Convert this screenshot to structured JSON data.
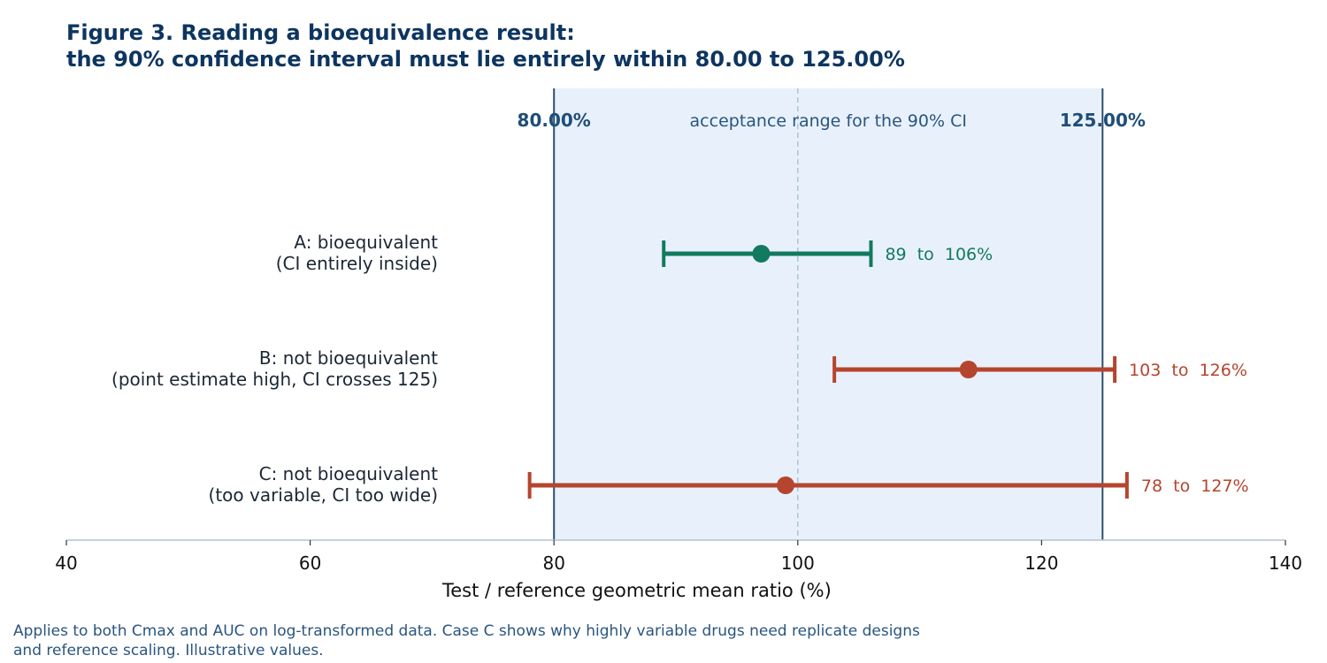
{
  "figure": {
    "title_line1": "Figure 3. Reading a bioequivalence result:",
    "title_line2": "the 90% confidence interval must lie entirely within 80.00 to 125.00%",
    "footnote_line1": "Applies to both Cmax and AUC on log-transformed data. Case C shows why highly variable drugs need replicate designs",
    "footnote_line2": "and reference scaling. Illustrative values."
  },
  "chart_data": {
    "type": "forest",
    "xlabel": "Test / reference geometric mean ratio (%)",
    "xlim": [
      40,
      140
    ],
    "xticks": [
      40,
      60,
      80,
      100,
      120,
      140
    ],
    "reference_line": 100,
    "acceptance_range": {
      "lower": 80,
      "upper": 125,
      "lower_label": "80.00%",
      "upper_label": "125.00%",
      "caption": "acceptance range for the 90% CI",
      "fill_color": "#e8f1fb",
      "line_color": "#2c4f6e"
    },
    "cases": [
      {
        "label_line1": "A: bioequivalent",
        "label_line2": "(CI entirely inside)",
        "point": 97,
        "lower": 89,
        "upper": 106,
        "annotation": "89  to  106%",
        "color": "#127a5e"
      },
      {
        "label_line1": "B: not bioequivalent",
        "label_line2": "(point estimate high, CI crosses 125)",
        "point": 114,
        "lower": 103,
        "upper": 126,
        "annotation": "103  to  126%",
        "color": "#b5452e"
      },
      {
        "label_line1": "C: not bioequivalent",
        "label_line2": "(too variable, CI too wide)",
        "point": 99,
        "lower": 78,
        "upper": 127,
        "annotation": "78  to  127%",
        "color": "#b5452e"
      }
    ]
  }
}
